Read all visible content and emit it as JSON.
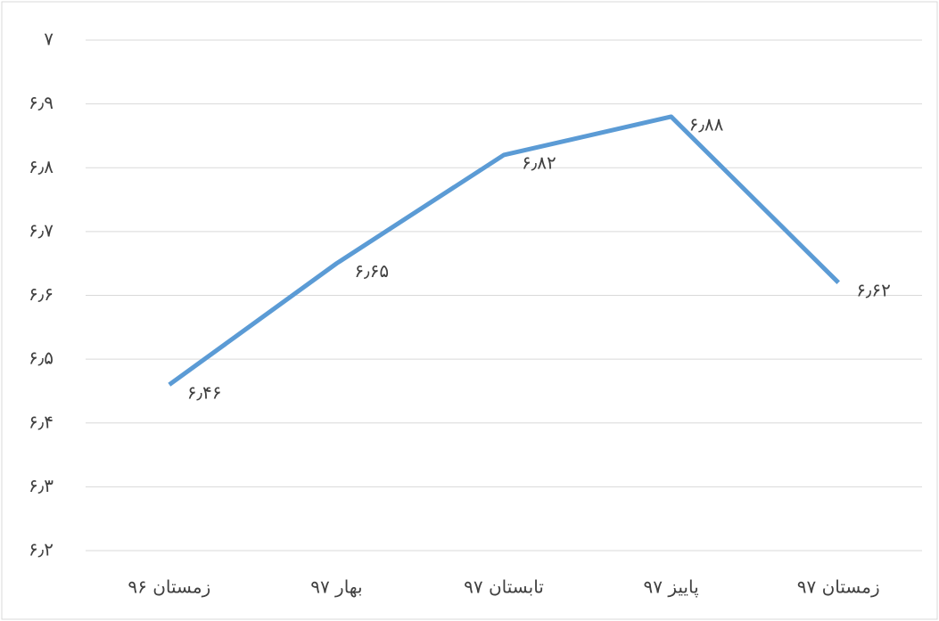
{
  "chart_data": {
    "type": "line",
    "categories": [
      "زمستان ۹۶",
      "بهار ۹۷",
      "تابستان ۹۷",
      "پاییز ۹۷",
      "زمستان ۹۷"
    ],
    "series": [
      {
        "color": "#5b9bd5",
        "values": [
          6.46,
          6.65,
          6.82,
          6.88,
          6.62
        ],
        "value_labels": [
          "۶٫۴۶",
          "۶٫۶۵",
          "۶٫۸۲",
          "۶٫۸۸",
          "۶٫۶۲"
        ]
      }
    ],
    "ylim": [
      6.2,
      7
    ],
    "yticks": [
      {
        "value": 6.2,
        "label": "۶٫۲"
      },
      {
        "value": 6.3,
        "label": "۶٫۳"
      },
      {
        "value": 6.4,
        "label": "۶٫۴"
      },
      {
        "value": 6.5,
        "label": "۶٫۵"
      },
      {
        "value": 6.6,
        "label": "۶٫۶"
      },
      {
        "value": 6.7,
        "label": "۶٫۷"
      },
      {
        "value": 6.8,
        "label": "۶٫۸"
      },
      {
        "value": 6.9,
        "label": "۶٫۹"
      },
      {
        "value": 7,
        "label": "۷"
      }
    ],
    "grid": true
  }
}
